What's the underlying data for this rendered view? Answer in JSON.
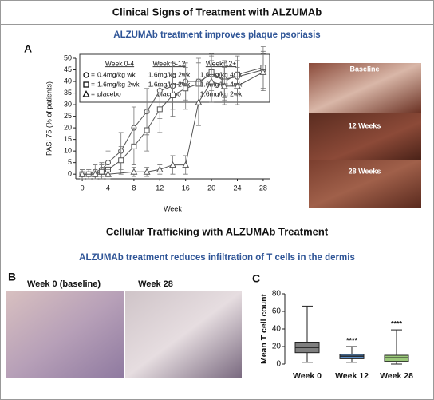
{
  "sections": [
    {
      "title": "Clinical Signs of Treatment with ALZUMAb",
      "subtitle": "ALZUMAb treatment improves plaque psoriasis"
    },
    {
      "title": "Cellular Trafficking with ALZUMAb Treatment",
      "subtitle": "ALZUMAb treatment reduces infiltration of T cells in the dermis"
    }
  ],
  "panel_labels": [
    "A",
    "B",
    "C"
  ],
  "photos_a": [
    "Baseline",
    "12 Weeks",
    "28 Weeks"
  ],
  "photos_b": [
    "Week 0 (baseline)",
    "Week 28"
  ],
  "chart_data": [
    {
      "type": "line",
      "xlabel": "Week",
      "ylabel": "PASI 75 (% of patients)",
      "xlim": [
        -1,
        29
      ],
      "xticks": [
        0,
        4,
        8,
        12,
        16,
        20,
        24,
        28
      ],
      "ylim": [
        -2,
        50
      ],
      "yticks": [
        0,
        5,
        10,
        15,
        20,
        25,
        30,
        35,
        40,
        45,
        50
      ],
      "legend_headers": [
        "Week 0-4",
        "Week 5-12",
        "Week 12+"
      ],
      "legend_separator": "=",
      "series": [
        {
          "name": "0.4mg/kg  wk",
          "marker": "circle",
          "color": "#555555",
          "regimen": [
            "1.6mg/kg  2wk",
            "1.6mg/kg 4wk"
          ],
          "x": [
            0,
            1,
            2,
            3,
            4,
            6,
            8,
            10,
            12,
            14,
            16,
            18,
            20,
            22,
            24,
            28
          ],
          "values": [
            0,
            0,
            1,
            2,
            5,
            10,
            20,
            27,
            36,
            38,
            40,
            40,
            43,
            41,
            42,
            45
          ],
          "errors": [
            2,
            2,
            3,
            3,
            5,
            8,
            9,
            10,
            12,
            10,
            8,
            10,
            8,
            8,
            7,
            8
          ]
        },
        {
          "name": "1.6mg/kg  2wk",
          "marker": "square",
          "color": "#555555",
          "regimen": [
            "1.6mg/kg  2wk",
            "1.6mg/kg  4wk"
          ],
          "x": [
            0,
            1,
            2,
            3,
            4,
            6,
            8,
            10,
            12,
            14,
            16,
            18,
            20,
            22,
            24,
            28
          ],
          "values": [
            0,
            0,
            0,
            1,
            2,
            6,
            12,
            19,
            28,
            34,
            37,
            39,
            44,
            40,
            43,
            46
          ],
          "errors": [
            2,
            2,
            2,
            3,
            4,
            6,
            8,
            9,
            10,
            9,
            9,
            9,
            8,
            8,
            8,
            9
          ]
        },
        {
          "name": "placebo",
          "marker": "triangle",
          "color": "#555555",
          "regimen": [
            "placebo",
            "1.6mg/kg 2wk"
          ],
          "x": [
            0,
            2,
            4,
            8,
            10,
            12,
            14,
            16,
            18,
            20,
            22,
            24,
            28
          ],
          "values": [
            0,
            0,
            0,
            1,
            1,
            2,
            4,
            4,
            31,
            40,
            38,
            38,
            44
          ],
          "errors": [
            2,
            2,
            2,
            2,
            2,
            2,
            4,
            4,
            10,
            9,
            8,
            8,
            8
          ]
        }
      ]
    },
    {
      "type": "box",
      "ylabel": "Mean T cell count",
      "ylim": [
        0,
        80
      ],
      "yticks": [
        0,
        20,
        40,
        60,
        80
      ],
      "categories": [
        "Week 0",
        "Week 12",
        "Week 28"
      ],
      "colors": [
        "#7f7f7f",
        "#5b8fc9",
        "#9bc97a"
      ],
      "boxes": [
        {
          "min": 2,
          "q1": 13,
          "median": 19,
          "q3": 25,
          "max": 66
        },
        {
          "min": 2,
          "q1": 6,
          "median": 9,
          "q3": 11,
          "max": 20
        },
        {
          "min": 0,
          "q1": 3,
          "median": 7,
          "q3": 10,
          "max": 39
        }
      ],
      "annotations": [
        {
          "x": "Week 12",
          "text": "****"
        },
        {
          "x": "Week 28",
          "text": "****"
        }
      ]
    }
  ]
}
